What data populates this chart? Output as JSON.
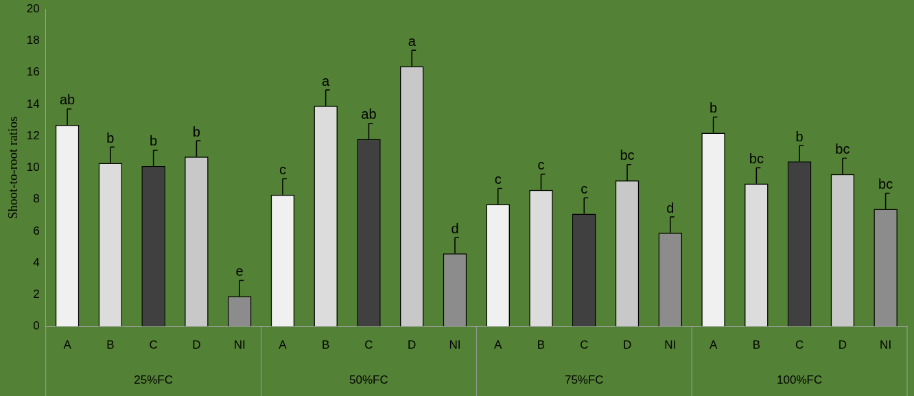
{
  "chart_data": {
    "type": "bar",
    "ylabel": "Shoot-to-root ratios",
    "categories": [
      "A",
      "B",
      "C",
      "D",
      "NI",
      "A",
      "B",
      "C",
      "D",
      "NI",
      "A",
      "B",
      "C",
      "D",
      "NI",
      "A",
      "B",
      "C",
      "D",
      "NI"
    ],
    "values": [
      12.7,
      10.3,
      10.1,
      10.7,
      1.9,
      8.3,
      13.9,
      11.8,
      16.4,
      4.6,
      7.7,
      8.6,
      7.1,
      9.2,
      5.9,
      12.2,
      9.0,
      10.4,
      9.6,
      7.4
    ],
    "errors": [
      1,
      1,
      1,
      1,
      1,
      1,
      1,
      1,
      1,
      1,
      1,
      1,
      1,
      1,
      1,
      1,
      1,
      1,
      1,
      1
    ],
    "value_labels": [
      "ab",
      "b",
      "b",
      "b",
      "e",
      "c",
      "a",
      "ab",
      "a",
      "d",
      "c",
      "c",
      "c",
      "bc",
      "d",
      "b",
      "bc",
      "b",
      "bc",
      "bc"
    ],
    "colors": [
      "#f0f0f0",
      "#dcdcdc",
      "#404040",
      "#c8c8c8",
      "#8c8c8c",
      "#f0f0f0",
      "#dcdcdc",
      "#404040",
      "#c8c8c8",
      "#8c8c8c",
      "#f0f0f0",
      "#dcdcdc",
      "#404040",
      "#c8c8c8",
      "#8c8c8c",
      "#f0f0f0",
      "#dcdcdc",
      "#404040",
      "#c8c8c8",
      "#8c8c8c"
    ],
    "annotations": [
      "25%FC",
      "50%FC",
      "75%FC",
      "100%FC"
    ],
    "ylim": [
      0,
      20
    ],
    "yticks": [
      0,
      2,
      4,
      6,
      8,
      10,
      12,
      14,
      16,
      18,
      20
    ],
    "grid": false,
    "legend": false
  }
}
